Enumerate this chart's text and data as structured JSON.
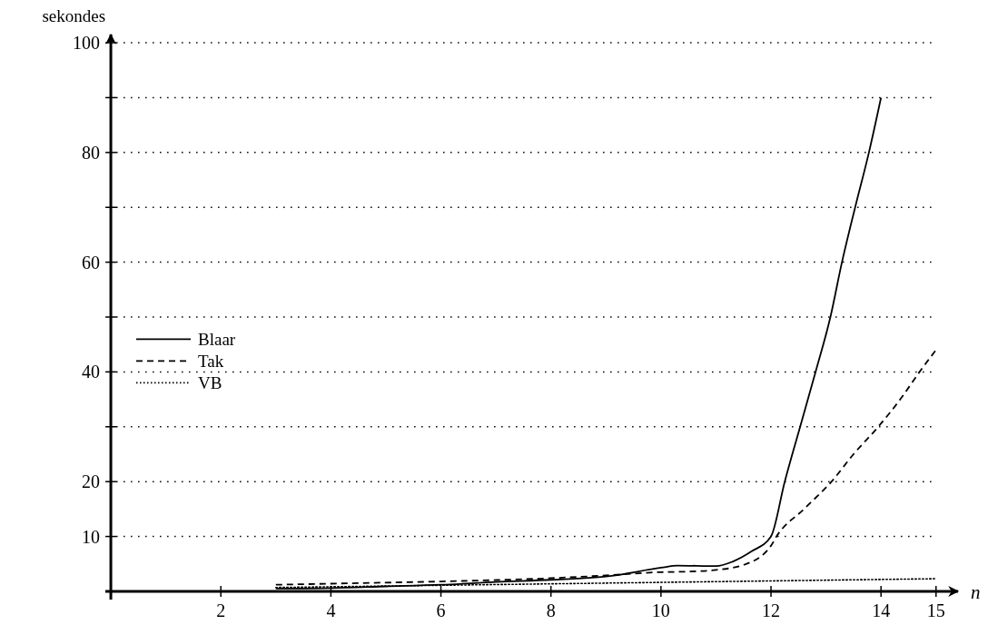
{
  "chart_data": {
    "type": "line",
    "xlabel": "n",
    "ylabel": "sekondes",
    "xlim": [
      -0.1,
      15.4
    ],
    "ylim": [
      -1.5,
      101.5
    ],
    "xticks": [
      2,
      4,
      6,
      8,
      10,
      12,
      14,
      15
    ],
    "yticks": [
      10,
      20,
      {
        "value": 30,
        "label": null
      },
      40,
      {
        "value": 50,
        "label": null
      },
      60,
      {
        "value": 70,
        "label": null
      },
      80,
      {
        "value": 90,
        "label": null
      },
      100
    ],
    "grid": "y",
    "legend": "left",
    "marker": "none",
    "series": [
      {
        "name": "Blaar",
        "color": "#000000",
        "line_style": "solid",
        "x": [
          3,
          4,
          5,
          6,
          7,
          8,
          9,
          10,
          10.3,
          11,
          11.3,
          11.65,
          12,
          12.25,
          12.53,
          12.81,
          13.08,
          13.29,
          13.53,
          13.78,
          14
        ],
        "values": [
          0.5,
          0.6,
          0.9,
          1.2,
          1.7,
          2.1,
          2.7,
          4.3,
          4.7,
          4.6,
          5.4,
          7.3,
          10,
          20,
          30,
          40,
          50,
          60,
          70,
          80,
          90
        ]
      },
      {
        "name": "Tak",
        "color": "#000000",
        "line_style": "dashed",
        "x": [
          3,
          4,
          6,
          8,
          9,
          10,
          10.5,
          11,
          11.5,
          12,
          12.1,
          12.6,
          13.1,
          13.5,
          13.95,
          14.35,
          14.7,
          15
        ],
        "values": [
          1.2,
          1.4,
          1.8,
          2.4,
          2.9,
          3.5,
          3.6,
          3.9,
          4.8,
          8.3,
          10,
          15,
          20,
          25,
          30,
          35,
          40,
          44
        ]
      },
      {
        "name": "VB",
        "color": "#000000",
        "line_style": "dotted",
        "x": [
          3,
          6,
          9,
          12,
          15
        ],
        "values": [
          0.7,
          1.1,
          1.5,
          1.9,
          2.3
        ]
      }
    ]
  }
}
